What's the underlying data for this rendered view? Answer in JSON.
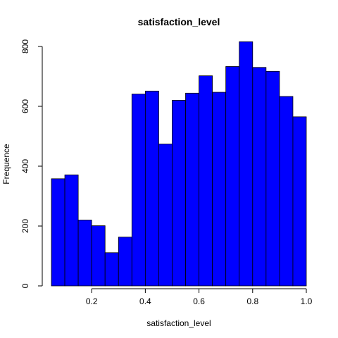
{
  "chart_data": {
    "type": "bar",
    "title": "satisfaction_level",
    "xlabel": "satisfaction_level",
    "ylabel": "Frequence",
    "bin_edges": [
      0.05,
      0.1,
      0.15,
      0.2,
      0.25,
      0.3,
      0.35,
      0.4,
      0.45,
      0.5,
      0.55,
      0.6,
      0.65,
      0.7,
      0.75,
      0.8,
      0.85,
      0.9,
      0.95,
      1.0
    ],
    "values": [
      358,
      371,
      220,
      201,
      111,
      163,
      641,
      651,
      474,
      620,
      644,
      702,
      647,
      733,
      816,
      730,
      717,
      633,
      565
    ],
    "xlim": [
      0.05,
      1.0
    ],
    "ylim": [
      0,
      800
    ],
    "x_ticks": [
      0.2,
      0.4,
      0.6,
      0.8,
      1.0
    ],
    "x_tick_labels": [
      "0.2",
      "0.4",
      "0.6",
      "0.8",
      "1.0"
    ],
    "y_ticks": [
      0,
      200,
      400,
      600,
      800
    ],
    "y_tick_labels": [
      "0",
      "200",
      "400",
      "600",
      "800"
    ],
    "bar_color": "#0000ff",
    "bar_border_color": "#000000",
    "grid": false
  }
}
